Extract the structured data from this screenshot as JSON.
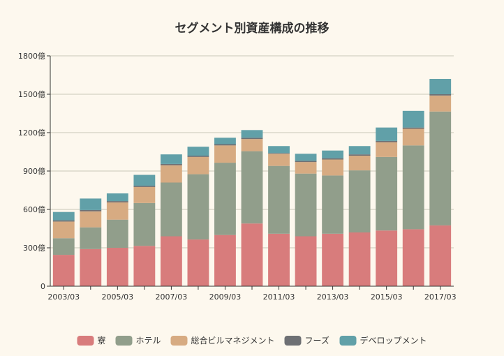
{
  "chart_data": {
    "type": "bar",
    "stacked": true,
    "title": "セグメント別資産構成の推移",
    "categories": [
      "2003/03",
      "2004/03",
      "2005/03",
      "2006/03",
      "2007/03",
      "2008/03",
      "2009/03",
      "2010/03",
      "2011/03",
      "2012/03",
      "2013/03",
      "2014/03",
      "2015/03",
      "2016/03",
      "2017/03"
    ],
    "x_tick_labels": [
      "2003/03",
      "",
      "2005/03",
      "",
      "2007/03",
      "",
      "2009/03",
      "",
      "2011/03",
      "",
      "2013/03",
      "",
      "2015/03",
      "",
      "2017/03"
    ],
    "ylim": [
      0,
      1800
    ],
    "y_ticks": [
      0,
      300,
      600,
      900,
      1200,
      1500,
      1800
    ],
    "y_tick_labels": [
      "0",
      "300億",
      "600億",
      "900億",
      "1200億",
      "1500億",
      "1800億"
    ],
    "grid": true,
    "legend_position": "bottom",
    "series": [
      {
        "name": "寮",
        "color": "#d87c7c",
        "values": [
          245,
          290,
          300,
          315,
          390,
          365,
          400,
          490,
          410,
          390,
          410,
          420,
          435,
          445,
          475
        ]
      },
      {
        "name": "ホテル",
        "color": "#919e8b",
        "values": [
          130,
          170,
          220,
          335,
          420,
          510,
          565,
          565,
          530,
          490,
          455,
          485,
          575,
          655,
          890
        ]
      },
      {
        "name": "総合ビルマネジメント",
        "color": "#d7ab82",
        "values": [
          130,
          125,
          135,
          125,
          135,
          135,
          135,
          95,
          95,
          90,
          125,
          115,
          115,
          130,
          125
        ]
      },
      {
        "name": "フーズ",
        "color": "#6e7074",
        "values": [
          10,
          10,
          10,
          10,
          10,
          10,
          10,
          10,
          5,
          10,
          10,
          10,
          10,
          10,
          10
        ]
      },
      {
        "name": "デベロップメント",
        "color": "#61a0a8",
        "values": [
          65,
          90,
          60,
          85,
          75,
          70,
          50,
          60,
          55,
          55,
          60,
          65,
          105,
          130,
          120
        ]
      }
    ]
  }
}
